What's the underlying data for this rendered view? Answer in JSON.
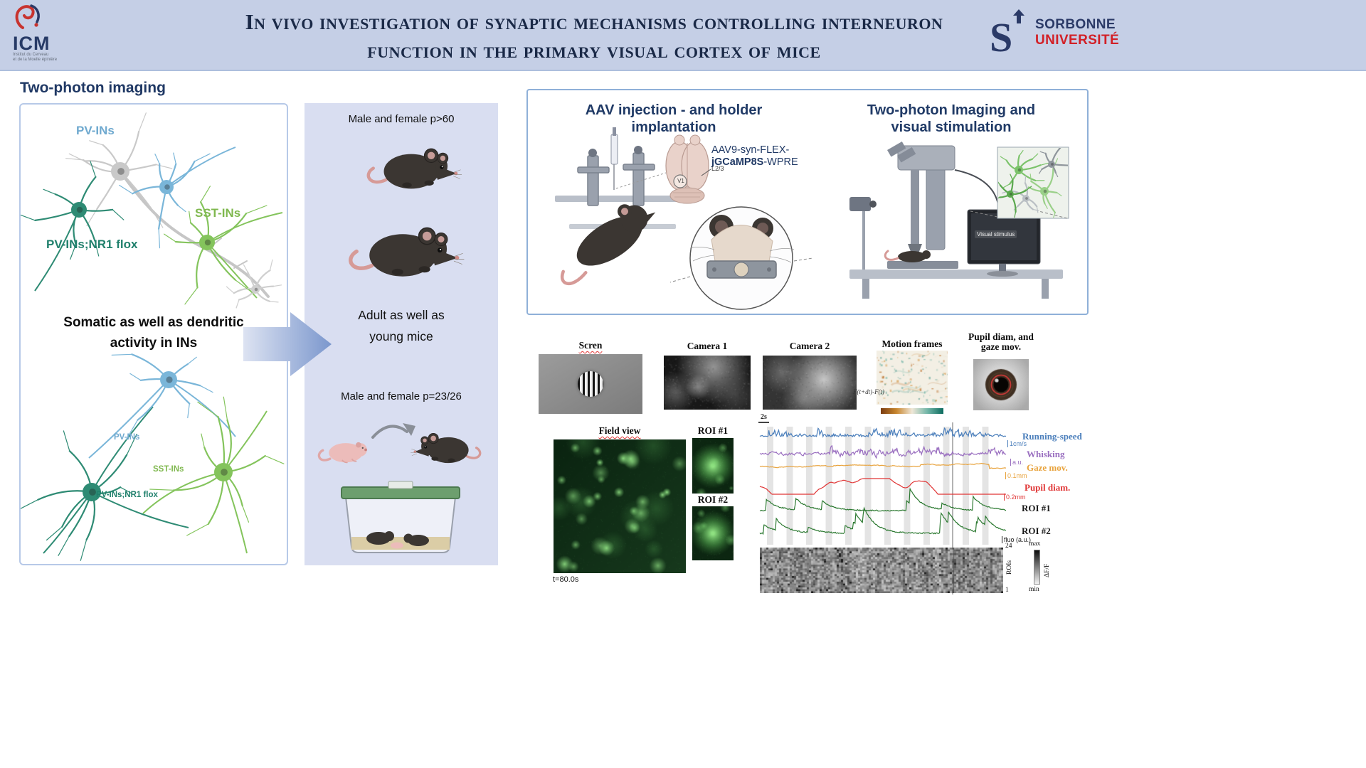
{
  "colors": {
    "header_bg": "#c5cfe6",
    "navy": "#1f3864",
    "panel_bg": "#d9def1",
    "pv_blue": "#6fa9cf",
    "sst_green": "#7fb84e",
    "teal": "#20806c",
    "sorbonne_blue": "#2b3a67",
    "sorbonne_red": "#d22027"
  },
  "header": {
    "title_line1": "In vivo investigation of synaptic mechanisms controlling interneuron",
    "title_line2": "function in the primary visual cortex of mice",
    "icm": {
      "name": "ICM",
      "sub1": "Institut du Cerveau",
      "sub2": "et de la Moelle épinière"
    },
    "sorbonne": {
      "line1": "SORBONNE",
      "line2": "UNIVERSITÉ"
    }
  },
  "section_heading": "Two-photon imaging",
  "neuron_panel": {
    "top_labels": {
      "pv": "PV-INs",
      "s st": "",
      "sst": "SST-INs",
      "nr1": "PV-INs;NR1 flox"
    },
    "caption_line1": "Somatic as well as dendritic",
    "caption_line2": "activity in INs",
    "bottom_labels": {
      "pv": "PV-INs",
      "sst": "SST-INs",
      "nr1": "PV-INs;NR1 flox"
    }
  },
  "mice_panel": {
    "adult_text": "Male and female p>60",
    "middle_line1": "Adult as well as",
    "middle_line2": "young mice",
    "young_text": "Male and female p=23/26"
  },
  "methods_panel": {
    "left_title_line1": "AAV injection - and holder",
    "left_title_line2": "implantation",
    "right_title_line1": "Two-photon Imaging and",
    "right_title_line2": "visual stimulation",
    "aav_line1": "AAV9-syn-FLEX-",
    "aav_bold": "jGCaMP8S",
    "aav_suffix": "-WPRE",
    "v1_label": "V1",
    "layer_label": "L2/3",
    "visual_stimulus": "Visual stimulus"
  },
  "recording_row": {
    "screen_label": "Scren",
    "camera1_label": "Camera 1",
    "camera2_label": "Camera 2",
    "motion_label": "Motion frames",
    "motion_formula": "F(t+dt)-F(t)",
    "pupil_label_line1": "Pupil diam, and",
    "pupil_label_line2": "gaze mov."
  },
  "imaging_row": {
    "field_label": "Field view",
    "timestamp": "t=80.0s",
    "roi1_label": "ROI #1",
    "roi2_label": "ROI #2"
  },
  "traces": {
    "scalebar": "2s",
    "rows": [
      {
        "label": "Running-speed",
        "unit": "1cm/s",
        "color": "#4a7ebb",
        "label_color": "#4a7ebb"
      },
      {
        "label": "Whisking",
        "unit": "a.u.",
        "color": "#9a6fc0",
        "label_color": "#9a6fc0"
      },
      {
        "label": "Gaze mov.",
        "unit": "0.1mm",
        "color": "#e8a33d",
        "label_color": "#e8a33d"
      },
      {
        "label": "Pupil diam.",
        "unit": "0.2mm",
        "color": "#e03535",
        "label_color": "#e03535"
      },
      {
        "label": "ROI #1",
        "unit": "",
        "color": "#2d7a32",
        "label_color": "#1a1a1a"
      },
      {
        "label": "ROI #2",
        "unit": "fluo (a.u.)",
        "color": "#2d7a32",
        "label_color": "#1a1a1a"
      }
    ],
    "raster": {
      "top": "24",
      "axis": "ROIs",
      "bottom": "1",
      "max": "max",
      "min": "min",
      "colorbar_label": "ΔF/F"
    }
  }
}
